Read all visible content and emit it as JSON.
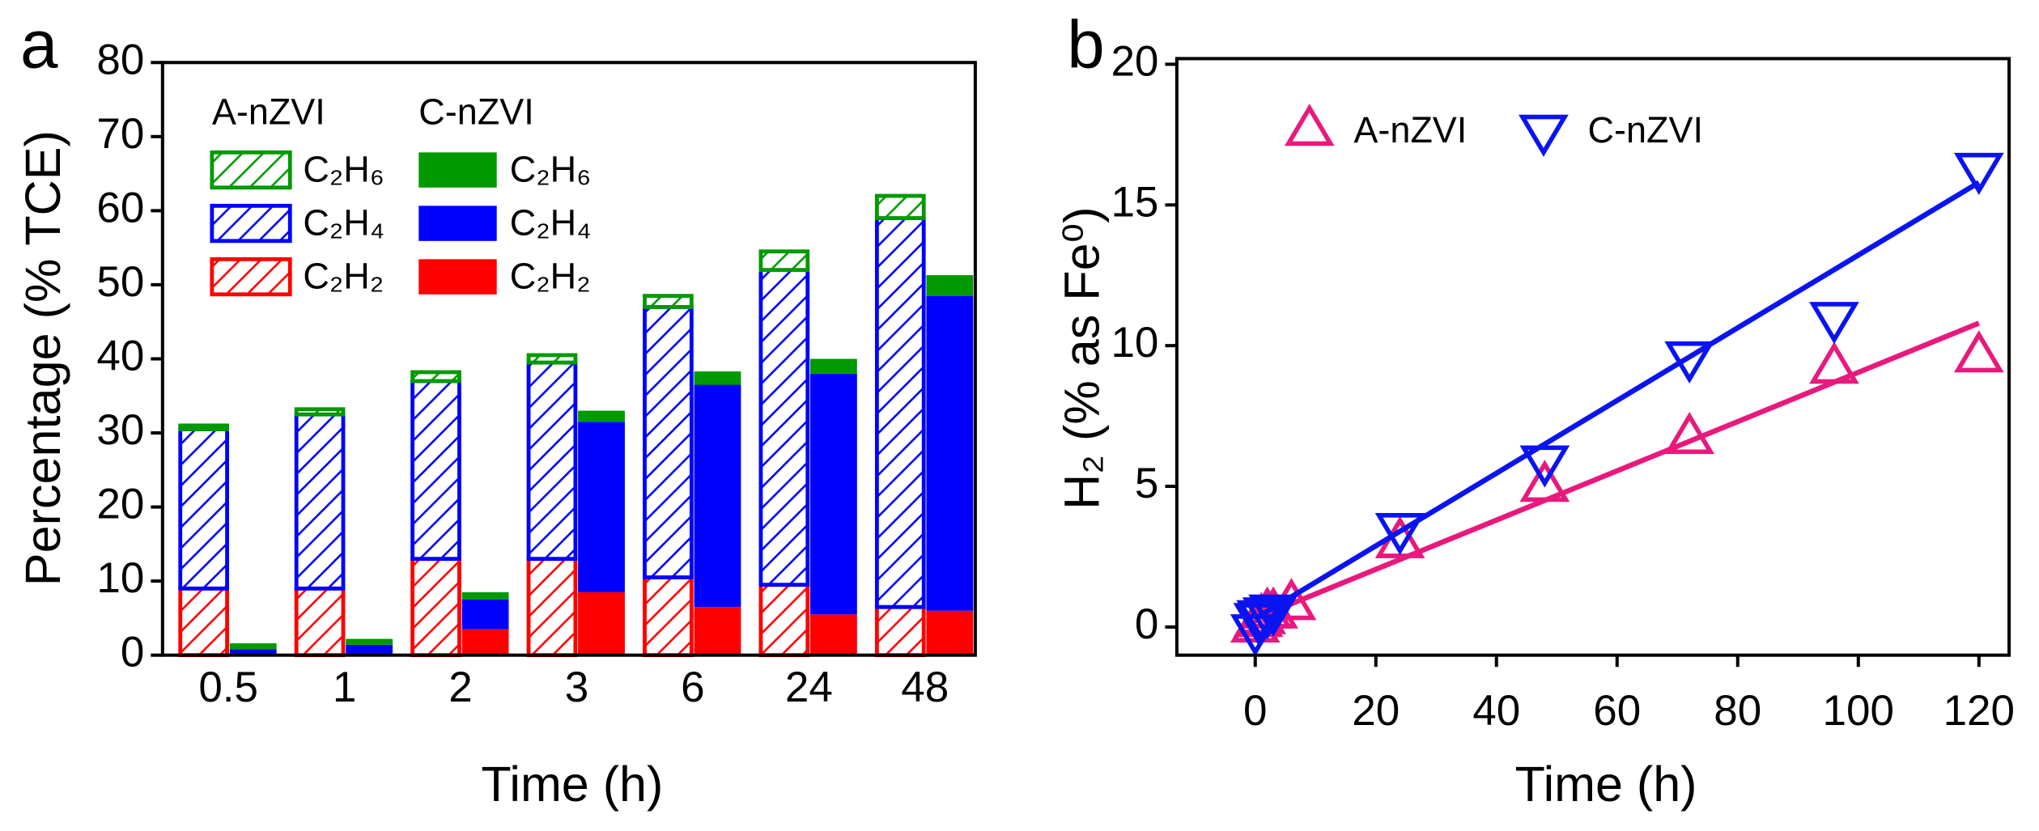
{
  "chart_data": [
    {
      "type": "bar",
      "panel": "a",
      "x_label": "Time (h)",
      "y_label": "Percentage (% TCE)",
      "categories": [
        "0.5",
        "1",
        "2",
        "3",
        "6",
        "24",
        "48"
      ],
      "ylim": [
        0,
        80
      ],
      "yticks": [
        0,
        10,
        20,
        30,
        40,
        50,
        60,
        70,
        80
      ],
      "groups": [
        {
          "name": "A-nZVI",
          "hatch": true,
          "series": [
            {
              "name": "C₂H₂",
              "color": "#ff0000",
              "values": [
                9,
                9,
                13,
                13,
                10.5,
                9.5,
                6.5
              ]
            },
            {
              "name": "C₂H₄",
              "color": "#0000ff",
              "values": [
                21.5,
                23.5,
                24,
                26.5,
                36.5,
                42.5,
                52.5
              ]
            },
            {
              "name": "C₂H₆",
              "color": "#009a00",
              "values": [
                0.5,
                0.7,
                1.2,
                1,
                1.5,
                2.5,
                3
              ]
            }
          ]
        },
        {
          "name": "C-nZVI",
          "hatch": false,
          "series": [
            {
              "name": "C₂H₂",
              "color": "#ff0000",
              "values": [
                0.2,
                0.2,
                3.5,
                8.5,
                6.5,
                5.5,
                6
              ]
            },
            {
              "name": "C₂H₄",
              "color": "#0000ff",
              "values": [
                0.6,
                1.2,
                4,
                23,
                30,
                32.5,
                42.5
              ]
            },
            {
              "name": "C₂H₆",
              "color": "#009a00",
              "values": [
                0.8,
                0.8,
                1,
                1.5,
                1.8,
                2,
                2.8
              ]
            }
          ]
        }
      ]
    },
    {
      "type": "scatter",
      "panel": "b",
      "x_label": "Time (h)",
      "y_label": "H₂ (% as Fe⁰)",
      "xlim": [
        -13,
        125
      ],
      "xticks": [
        0,
        20,
        40,
        60,
        80,
        100,
        120
      ],
      "ylim": [
        -1,
        20.2
      ],
      "yticks": [
        0,
        5,
        10,
        15,
        20
      ],
      "legend": "upper left",
      "series": [
        {
          "name": "A-nZVI",
          "color": "#e8197d",
          "marker": "triangle-up",
          "x": [
            0,
            0.5,
            1,
            2,
            3,
            6,
            24,
            48,
            72,
            96,
            120
          ],
          "y": [
            0,
            0.2,
            0.3,
            0.5,
            0.5,
            0.8,
            3,
            5,
            6.7,
            9.2,
            9.6
          ],
          "fit": {
            "x": [
              0,
              120
            ],
            "y": [
              0.3,
              10.8
            ]
          }
        },
        {
          "name": "C-nZVI",
          "color": "#0a14f0",
          "marker": "triangle-down",
          "x": [
            0,
            0.5,
            1,
            2,
            3,
            24,
            48,
            72,
            96,
            120
          ],
          "y": [
            -0.1,
            0.3,
            0.4,
            0.5,
            0.6,
            3.5,
            5.9,
            9.6,
            11,
            16.3
          ],
          "fit": {
            "x": [
              0,
              120
            ],
            "y": [
              0.3,
              15.8
            ]
          }
        }
      ]
    }
  ]
}
